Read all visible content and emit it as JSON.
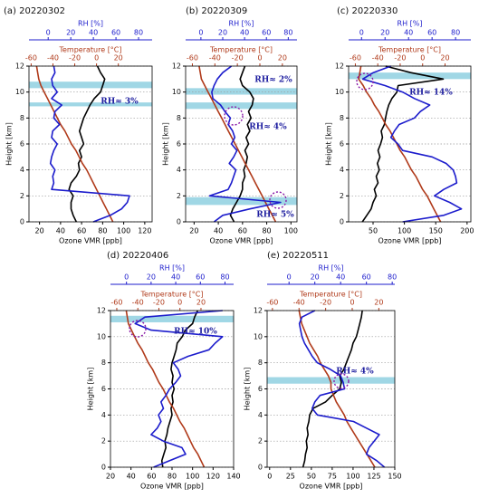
{
  "chart_data": [
    {
      "type": "profile",
      "title": "(a) 20220302",
      "ylabel": "Height [km]",
      "ylim": [
        0,
        12
      ],
      "yticks": [
        0,
        2,
        4,
        6,
        8,
        10,
        12
      ],
      "grid": true,
      "heights": [
        0,
        0.5,
        1,
        1.5,
        2,
        2.5,
        3,
        3.5,
        4,
        4.5,
        5,
        5.5,
        6,
        6.5,
        7,
        7.5,
        8,
        8.5,
        9,
        9.5,
        10,
        10.5,
        11,
        11.5,
        12
      ],
      "shaded_layers": [
        [
          10.3,
          10.8
        ],
        [
          8.9,
          9.2
        ]
      ],
      "annotations": [
        "RH≈ 3%"
      ],
      "profiles": [
        {
          "label": "Ozone VMR  [ppb]",
          "color": "#000000",
          "xlim": [
            10,
            127
          ],
          "xticks": [
            20,
            40,
            60,
            80,
            100,
            120
          ],
          "values": [
            55,
            52,
            50,
            50,
            52,
            48,
            50,
            55,
            58,
            57,
            60,
            58,
            62,
            60,
            58,
            60,
            62,
            65,
            68,
            72,
            78,
            80,
            82,
            78,
            75
          ]
        },
        {
          "label": "Temperature [°C]",
          "color": "#b03a1a",
          "xlim": [
            -62,
            51
          ],
          "xticks": [
            -60,
            -40,
            -20,
            0,
            20
          ],
          "values": [
            15,
            12,
            9,
            6,
            3,
            0,
            -3,
            -6,
            -9,
            -13,
            -16,
            -19,
            -23,
            -26,
            -29,
            -33,
            -36,
            -39,
            -42,
            -45,
            -48,
            -51,
            -53,
            -54,
            -55
          ]
        },
        {
          "label": "RH [%]",
          "color": "#1c1ccc",
          "xlim": [
            -17,
            92
          ],
          "xticks": [
            0,
            20,
            40,
            60,
            80
          ],
          "values": [
            40,
            55,
            65,
            70,
            72,
            3,
            5,
            4,
            6,
            2,
            3,
            5,
            8,
            3,
            4,
            10,
            5,
            6,
            12,
            3,
            8,
            4,
            3,
            6,
            5
          ]
        }
      ]
    },
    {
      "type": "profile",
      "title": "(b) 20220309",
      "ylabel": "Height [km]",
      "ylim": [
        0,
        12
      ],
      "yticks": [
        0,
        2,
        4,
        6,
        8,
        10,
        12
      ],
      "grid": true,
      "heights": [
        0,
        0.5,
        1,
        1.5,
        2,
        2.5,
        3,
        3.5,
        4,
        4.5,
        5,
        5.5,
        6,
        6.5,
        7,
        7.5,
        8,
        8.5,
        9,
        9.5,
        10,
        10.5,
        11,
        11.5,
        12
      ],
      "shaded_layers": [
        [
          9.8,
          10.3
        ],
        [
          8.7,
          9.2
        ],
        [
          1.3,
          1.9
        ]
      ],
      "annotations": [
        "RH≈ 2%",
        "RH≈ 4%",
        "RH≈ 5%"
      ],
      "profiles": [
        {
          "label": "Ozone VMR  [ppb]",
          "color": "#000000",
          "xlim": [
            13,
            105
          ],
          "xticks": [
            20,
            40,
            60,
            80,
            100
          ],
          "values": [
            53,
            50,
            52,
            55,
            58,
            60,
            60,
            62,
            61,
            63,
            64,
            62,
            65,
            63,
            66,
            64,
            67,
            65,
            68,
            69,
            66,
            60,
            58,
            60,
            62
          ]
        },
        {
          "label": "Temperature [°C]",
          "color": "#b03a1a",
          "xlim": [
            -66,
            33
          ],
          "xticks": [
            -60,
            -40,
            -20,
            0,
            20
          ],
          "values": [
            14,
            11,
            8,
            5,
            2,
            -1,
            -4,
            -7,
            -10,
            -13,
            -16,
            -19,
            -22,
            -25,
            -28,
            -31,
            -34,
            -37,
            -40,
            -43,
            -46,
            -49,
            -52,
            -53,
            -54
          ]
        },
        {
          "label": "RH [%]",
          "color": "#1c1ccc",
          "xlim": [
            -14,
            88
          ],
          "xticks": [
            0,
            20,
            40,
            60,
            80
          ],
          "values": [
            12,
            20,
            45,
            73,
            8,
            25,
            28,
            30,
            32,
            26,
            30,
            33,
            28,
            31,
            29,
            25,
            27,
            22,
            18,
            11,
            10,
            12,
            15,
            20,
            28
          ]
        }
      ]
    },
    {
      "type": "profile",
      "title": "(c) 20220330",
      "ylabel": "Height [km]",
      "ylim": [
        0,
        12
      ],
      "yticks": [
        0,
        2,
        4,
        6,
        8,
        10,
        12
      ],
      "grid": true,
      "heights": [
        0,
        0.5,
        1,
        1.5,
        2,
        2.5,
        3,
        3.5,
        4,
        4.5,
        5,
        5.5,
        6,
        6.5,
        7,
        7.5,
        8,
        8.5,
        9,
        9.5,
        10,
        10.5,
        11,
        11.5,
        12
      ],
      "shaded_layers": [
        [
          11.0,
          11.5
        ]
      ],
      "annotations": [
        "RH≈ 14%"
      ],
      "profiles": [
        {
          "label": "Ozone VMR  [ppb]",
          "color": "#000000",
          "xlim": [
            11,
            206
          ],
          "xticks": [
            50,
            100,
            150,
            200
          ],
          "values": [
            33,
            40,
            47,
            50,
            55,
            52,
            58,
            55,
            60,
            57,
            61,
            58,
            62,
            65,
            63,
            68,
            70,
            72,
            75,
            80,
            88,
            90,
            162,
            110,
            70
          ]
        },
        {
          "label": "Temperature [°C]",
          "color": "#b03a1a",
          "xlim": [
            -66,
            43
          ],
          "xticks": [
            -60,
            -40,
            -20,
            0,
            20
          ],
          "values": [
            16,
            13,
            10,
            7,
            4,
            0,
            -3,
            -6,
            -10,
            -13,
            -16,
            -20,
            -23,
            -26,
            -29,
            -33,
            -36,
            -39,
            -43,
            -46,
            -50,
            -53,
            -57,
            -56,
            -55
          ]
        },
        {
          "label": "RH [%]",
          "color": "#1c1ccc",
          "xlim": [
            -11,
            93
          ],
          "xticks": [
            0,
            20,
            40,
            60,
            80
          ],
          "values": [
            35,
            70,
            85,
            75,
            62,
            70,
            81,
            80,
            78,
            72,
            60,
            35,
            31,
            25,
            28,
            32,
            45,
            50,
            58,
            45,
            35,
            20,
            1,
            10,
            25
          ]
        }
      ]
    },
    {
      "type": "profile",
      "title": "(d) 20220406",
      "ylabel": "Height [km]",
      "ylim": [
        0,
        12
      ],
      "yticks": [
        0,
        2,
        4,
        6,
        8,
        10,
        12
      ],
      "grid": true,
      "heights": [
        0,
        0.5,
        1,
        1.5,
        2,
        2.5,
        3,
        3.5,
        4,
        4.5,
        5,
        5.5,
        6,
        6.5,
        7,
        7.5,
        8,
        8.5,
        9,
        9.5,
        10,
        10.5,
        11,
        11.5,
        12
      ],
      "shaded_layers": [
        [
          11.1,
          11.6
        ]
      ],
      "annotations": [
        "RH≈ 10%"
      ],
      "profiles": [
        {
          "label": "Ozone VMR  [ppb]",
          "color": "#000000",
          "xlim": [
            20,
            140
          ],
          "xticks": [
            20,
            40,
            60,
            80,
            100,
            120,
            140
          ],
          "values": [
            71,
            70,
            72,
            74,
            73,
            75,
            76,
            78,
            80,
            79,
            81,
            80,
            82,
            80,
            81,
            79,
            80,
            82,
            84,
            85,
            90,
            93,
            100,
            102,
            105
          ]
        },
        {
          "label": "Temperature [°C]",
          "color": "#b03a1a",
          "xlim": [
            -66,
            51
          ],
          "xticks": [
            -60,
            -40,
            -20,
            0,
            20
          ],
          "values": [
            23,
            20,
            17,
            13,
            10,
            7,
            4,
            0,
            -3,
            -6,
            -10,
            -13,
            -16,
            -20,
            -23,
            -26,
            -30,
            -33,
            -36,
            -40,
            -43,
            -46,
            -49,
            -50,
            -51
          ]
        },
        {
          "label": "RH [%]",
          "color": "#1c1ccc",
          "xlim": [
            -13,
            87
          ],
          "xticks": [
            0,
            20,
            40,
            60,
            80
          ],
          "values": [
            22,
            35,
            48,
            45,
            30,
            20,
            25,
            28,
            26,
            30,
            28,
            32,
            35,
            40,
            44,
            42,
            38,
            50,
            67,
            72,
            78,
            20,
            7,
            15,
            78
          ]
        }
      ]
    },
    {
      "type": "profile",
      "title": "(e) 20220511",
      "ylabel": "Height [km]",
      "ylim": [
        0,
        12
      ],
      "yticks": [
        0,
        2,
        4,
        6,
        8,
        10,
        12
      ],
      "grid": true,
      "heights": [
        0,
        0.5,
        1,
        1.5,
        2,
        2.5,
        3,
        3.5,
        4,
        4.5,
        5,
        5.5,
        6,
        6.5,
        7,
        7.5,
        8,
        8.5,
        9,
        9.5,
        10,
        10.5,
        11,
        11.5,
        12
      ],
      "shaded_layers": [
        [
          6.4,
          6.9
        ]
      ],
      "annotations": [
        "RH≈ 4%"
      ],
      "profiles": [
        {
          "label": "Ozone VMR  [ppb]",
          "color": "#000000",
          "xlim": [
            -3,
            150
          ],
          "xticks": [
            0,
            25,
            50,
            75,
            100,
            125,
            150
          ],
          "values": [
            40,
            42,
            43,
            45,
            44,
            46,
            45,
            47,
            48,
            52,
            67,
            75,
            84,
            86,
            84,
            89,
            92,
            95,
            98,
            100,
            104,
            106,
            108,
            110,
            111
          ]
        },
        {
          "label": "Temperature [°C]",
          "color": "#b03a1a",
          "xlim": [
            -64,
            32
          ],
          "xticks": [
            -60,
            -40,
            -20,
            0,
            20
          ],
          "values": [
            17,
            14,
            11,
            8,
            5,
            2,
            -1,
            -4,
            -6,
            -9,
            -12,
            -14,
            -16,
            -16,
            -18,
            -21,
            -24,
            -26,
            -29,
            -32,
            -34,
            -36,
            -38,
            -39,
            -40
          ]
        },
        {
          "label": "RH [%]",
          "color": "#1c1ccc",
          "xlim": [
            -17,
            82
          ],
          "xticks": [
            0,
            20,
            40,
            60,
            80
          ],
          "values": [
            74,
            68,
            60,
            62,
            66,
            70,
            60,
            50,
            22,
            18,
            20,
            24,
            43,
            42,
            40,
            32,
            22,
            18,
            15,
            12,
            10,
            9,
            8,
            10,
            20
          ]
        }
      ]
    }
  ]
}
